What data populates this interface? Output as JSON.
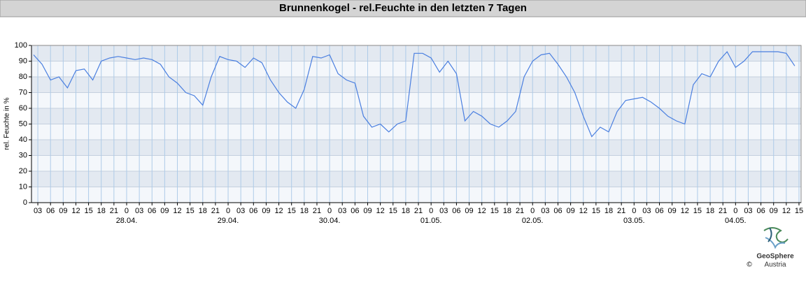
{
  "chart_data": {
    "type": "line",
    "title": "Brunnenkogel - rel.Feuchte in den letzten 7 Tagen",
    "y_label": "rel. Feuchte in %",
    "x": [
      "27.04. 02:00",
      "27.04. 04:00",
      "27.04. 06:00",
      "27.04. 08:00",
      "27.04. 10:00",
      "27.04. 12:00",
      "27.04. 14:00",
      "27.04. 16:00",
      "27.04. 18:00",
      "27.04. 20:00",
      "27.04. 22:00",
      "28.04. 00:00",
      "28.04. 02:00",
      "28.04. 04:00",
      "28.04. 06:00",
      "28.04. 08:00",
      "28.04. 10:00",
      "28.04. 12:00",
      "28.04. 14:00",
      "28.04. 16:00",
      "28.04. 18:00",
      "28.04. 20:00",
      "28.04. 22:00",
      "29.04. 00:00",
      "29.04. 02:00",
      "29.04. 04:00",
      "29.04. 06:00",
      "29.04. 08:00",
      "29.04. 10:00",
      "29.04. 12:00",
      "29.04. 14:00",
      "29.04. 16:00",
      "29.04. 18:00",
      "29.04. 20:00",
      "29.04. 22:00",
      "30.04. 00:00",
      "30.04. 02:00",
      "30.04. 04:00",
      "30.04. 06:00",
      "30.04. 08:00",
      "30.04. 10:00",
      "30.04. 12:00",
      "30.04. 14:00",
      "30.04. 16:00",
      "30.04. 18:00",
      "30.04. 20:00",
      "30.04. 22:00",
      "01.05. 00:00",
      "01.05. 02:00",
      "01.05. 04:00",
      "01.05. 06:00",
      "01.05. 08:00",
      "01.05. 10:00",
      "01.05. 12:00",
      "01.05. 14:00",
      "01.05. 16:00",
      "01.05. 18:00",
      "01.05. 20:00",
      "01.05. 22:00",
      "02.05. 00:00",
      "02.05. 02:00",
      "02.05. 04:00",
      "02.05. 06:00",
      "02.05. 08:00",
      "02.05. 10:00",
      "02.05. 12:00",
      "02.05. 14:00",
      "02.05. 16:00",
      "02.05. 18:00",
      "02.05. 20:00",
      "02.05. 22:00",
      "03.05. 00:00",
      "03.05. 02:00",
      "03.05. 04:00",
      "03.05. 06:00",
      "03.05. 08:00",
      "03.05. 10:00",
      "03.05. 12:00",
      "03.05. 14:00",
      "03.05. 16:00",
      "03.05. 18:00",
      "03.05. 20:00",
      "03.05. 22:00",
      "04.05. 00:00",
      "04.05. 02:00",
      "04.05. 04:00",
      "04.05. 06:00",
      "04.05. 08:00",
      "04.05. 10:00",
      "04.05. 12:00",
      "04.05. 14:00"
    ],
    "series": [
      {
        "name": "rel. Feuchte",
        "color": "#4a7fe0",
        "values": [
          94,
          88,
          78,
          80,
          73,
          84,
          85,
          78,
          90,
          92,
          93,
          92,
          91,
          92,
          91,
          88,
          80,
          76,
          70,
          68,
          62,
          80,
          93,
          91,
          90,
          86,
          92,
          89,
          78,
          70,
          64,
          60,
          72,
          93,
          92,
          94,
          82,
          78,
          76,
          55,
          48,
          50,
          45,
          50,
          52,
          95,
          95,
          92,
          83,
          90,
          82,
          52,
          58,
          55,
          50,
          48,
          52,
          58,
          80,
          90,
          94,
          95,
          88,
          80,
          70,
          55,
          42,
          48,
          45,
          58,
          65,
          66,
          67,
          64,
          60,
          55,
          52,
          50,
          75,
          82,
          80,
          90,
          96,
          86,
          90,
          96,
          96,
          96,
          96,
          95,
          87
        ]
      }
    ],
    "xlim": [
      "27.04. 01:30",
      "04.05. 15:30"
    ],
    "ylim": [
      0,
      100
    ],
    "yticks": [
      0,
      10,
      20,
      30,
      40,
      50,
      60,
      70,
      80,
      90,
      100
    ],
    "xticks": [
      {
        "value": "27.04. 03:00",
        "label": "03"
      },
      {
        "value": "27.04. 06:00",
        "label": "06"
      },
      {
        "value": "27.04. 09:00",
        "label": "09"
      },
      {
        "value": "27.04. 12:00",
        "label": "12"
      },
      {
        "value": "27.04. 15:00",
        "label": "15"
      },
      {
        "value": "27.04. 18:00",
        "label": "18"
      },
      {
        "value": "27.04. 21:00",
        "label": "21"
      },
      {
        "value": "28.04. 00:00",
        "label": "0"
      },
      {
        "value": "28.04. 03:00",
        "label": "03"
      },
      {
        "value": "28.04. 06:00",
        "label": "06"
      },
      {
        "value": "28.04. 09:00",
        "label": "09"
      },
      {
        "value": "28.04. 12:00",
        "label": "12"
      },
      {
        "value": "28.04. 15:00",
        "label": "15"
      },
      {
        "value": "28.04. 18:00",
        "label": "18"
      },
      {
        "value": "28.04. 21:00",
        "label": "21"
      },
      {
        "value": "29.04. 00:00",
        "label": "0"
      },
      {
        "value": "29.04. 03:00",
        "label": "03"
      },
      {
        "value": "29.04. 06:00",
        "label": "06"
      },
      {
        "value": "29.04. 09:00",
        "label": "09"
      },
      {
        "value": "29.04. 12:00",
        "label": "12"
      },
      {
        "value": "29.04. 15:00",
        "label": "15"
      },
      {
        "value": "29.04. 18:00",
        "label": "18"
      },
      {
        "value": "29.04. 21:00",
        "label": "21"
      },
      {
        "value": "30.04. 00:00",
        "label": "0"
      },
      {
        "value": "30.04. 03:00",
        "label": "03"
      },
      {
        "value": "30.04. 06:00",
        "label": "06"
      },
      {
        "value": "30.04. 09:00",
        "label": "09"
      },
      {
        "value": "30.04. 12:00",
        "label": "12"
      },
      {
        "value": "30.04. 15:00",
        "label": "15"
      },
      {
        "value": "30.04. 18:00",
        "label": "18"
      },
      {
        "value": "30.04. 21:00",
        "label": "21"
      },
      {
        "value": "01.05. 00:00",
        "label": "0"
      },
      {
        "value": "01.05. 03:00",
        "label": "03"
      },
      {
        "value": "01.05. 06:00",
        "label": "06"
      },
      {
        "value": "01.05. 09:00",
        "label": "09"
      },
      {
        "value": "01.05. 12:00",
        "label": "12"
      },
      {
        "value": "01.05. 15:00",
        "label": "15"
      },
      {
        "value": "01.05. 18:00",
        "label": "18"
      },
      {
        "value": "01.05. 21:00",
        "label": "21"
      },
      {
        "value": "02.05. 00:00",
        "label": "0"
      },
      {
        "value": "02.05. 03:00",
        "label": "03"
      },
      {
        "value": "02.05. 06:00",
        "label": "06"
      },
      {
        "value": "02.05. 09:00",
        "label": "09"
      },
      {
        "value": "02.05. 12:00",
        "label": "12"
      },
      {
        "value": "02.05. 15:00",
        "label": "15"
      },
      {
        "value": "02.05. 18:00",
        "label": "18"
      },
      {
        "value": "02.05. 21:00",
        "label": "21"
      },
      {
        "value": "03.05. 00:00",
        "label": "0"
      },
      {
        "value": "03.05. 03:00",
        "label": "03"
      },
      {
        "value": "03.05. 06:00",
        "label": "06"
      },
      {
        "value": "03.05. 09:00",
        "label": "09"
      },
      {
        "value": "03.05. 12:00",
        "label": "12"
      },
      {
        "value": "03.05. 15:00",
        "label": "15"
      },
      {
        "value": "03.05. 18:00",
        "label": "18"
      },
      {
        "value": "03.05. 21:00",
        "label": "21"
      },
      {
        "value": "04.05. 00:00",
        "label": "0"
      },
      {
        "value": "04.05. 03:00",
        "label": "03"
      },
      {
        "value": "04.05. 06:00",
        "label": "06"
      },
      {
        "value": "04.05. 09:00",
        "label": "09"
      },
      {
        "value": "04.05. 12:00",
        "label": "12"
      },
      {
        "value": "04.05. 15:00",
        "label": "15"
      }
    ],
    "date_labels": [
      {
        "value": "28.04. 00:00",
        "label": "28.04."
      },
      {
        "value": "29.04. 00:00",
        "label": "29.04."
      },
      {
        "value": "30.04. 00:00",
        "label": "30.04."
      },
      {
        "value": "01.05. 00:00",
        "label": "01.05."
      },
      {
        "value": "02.05. 00:00",
        "label": "02.05."
      },
      {
        "value": "03.05. 00:00",
        "label": "03.05."
      },
      {
        "value": "04.05. 00:00",
        "label": "04.05."
      }
    ],
    "grid": true
  },
  "footer": {
    "brand": "GeoSphere",
    "brand_sub": "Austria",
    "copyright": "©"
  }
}
